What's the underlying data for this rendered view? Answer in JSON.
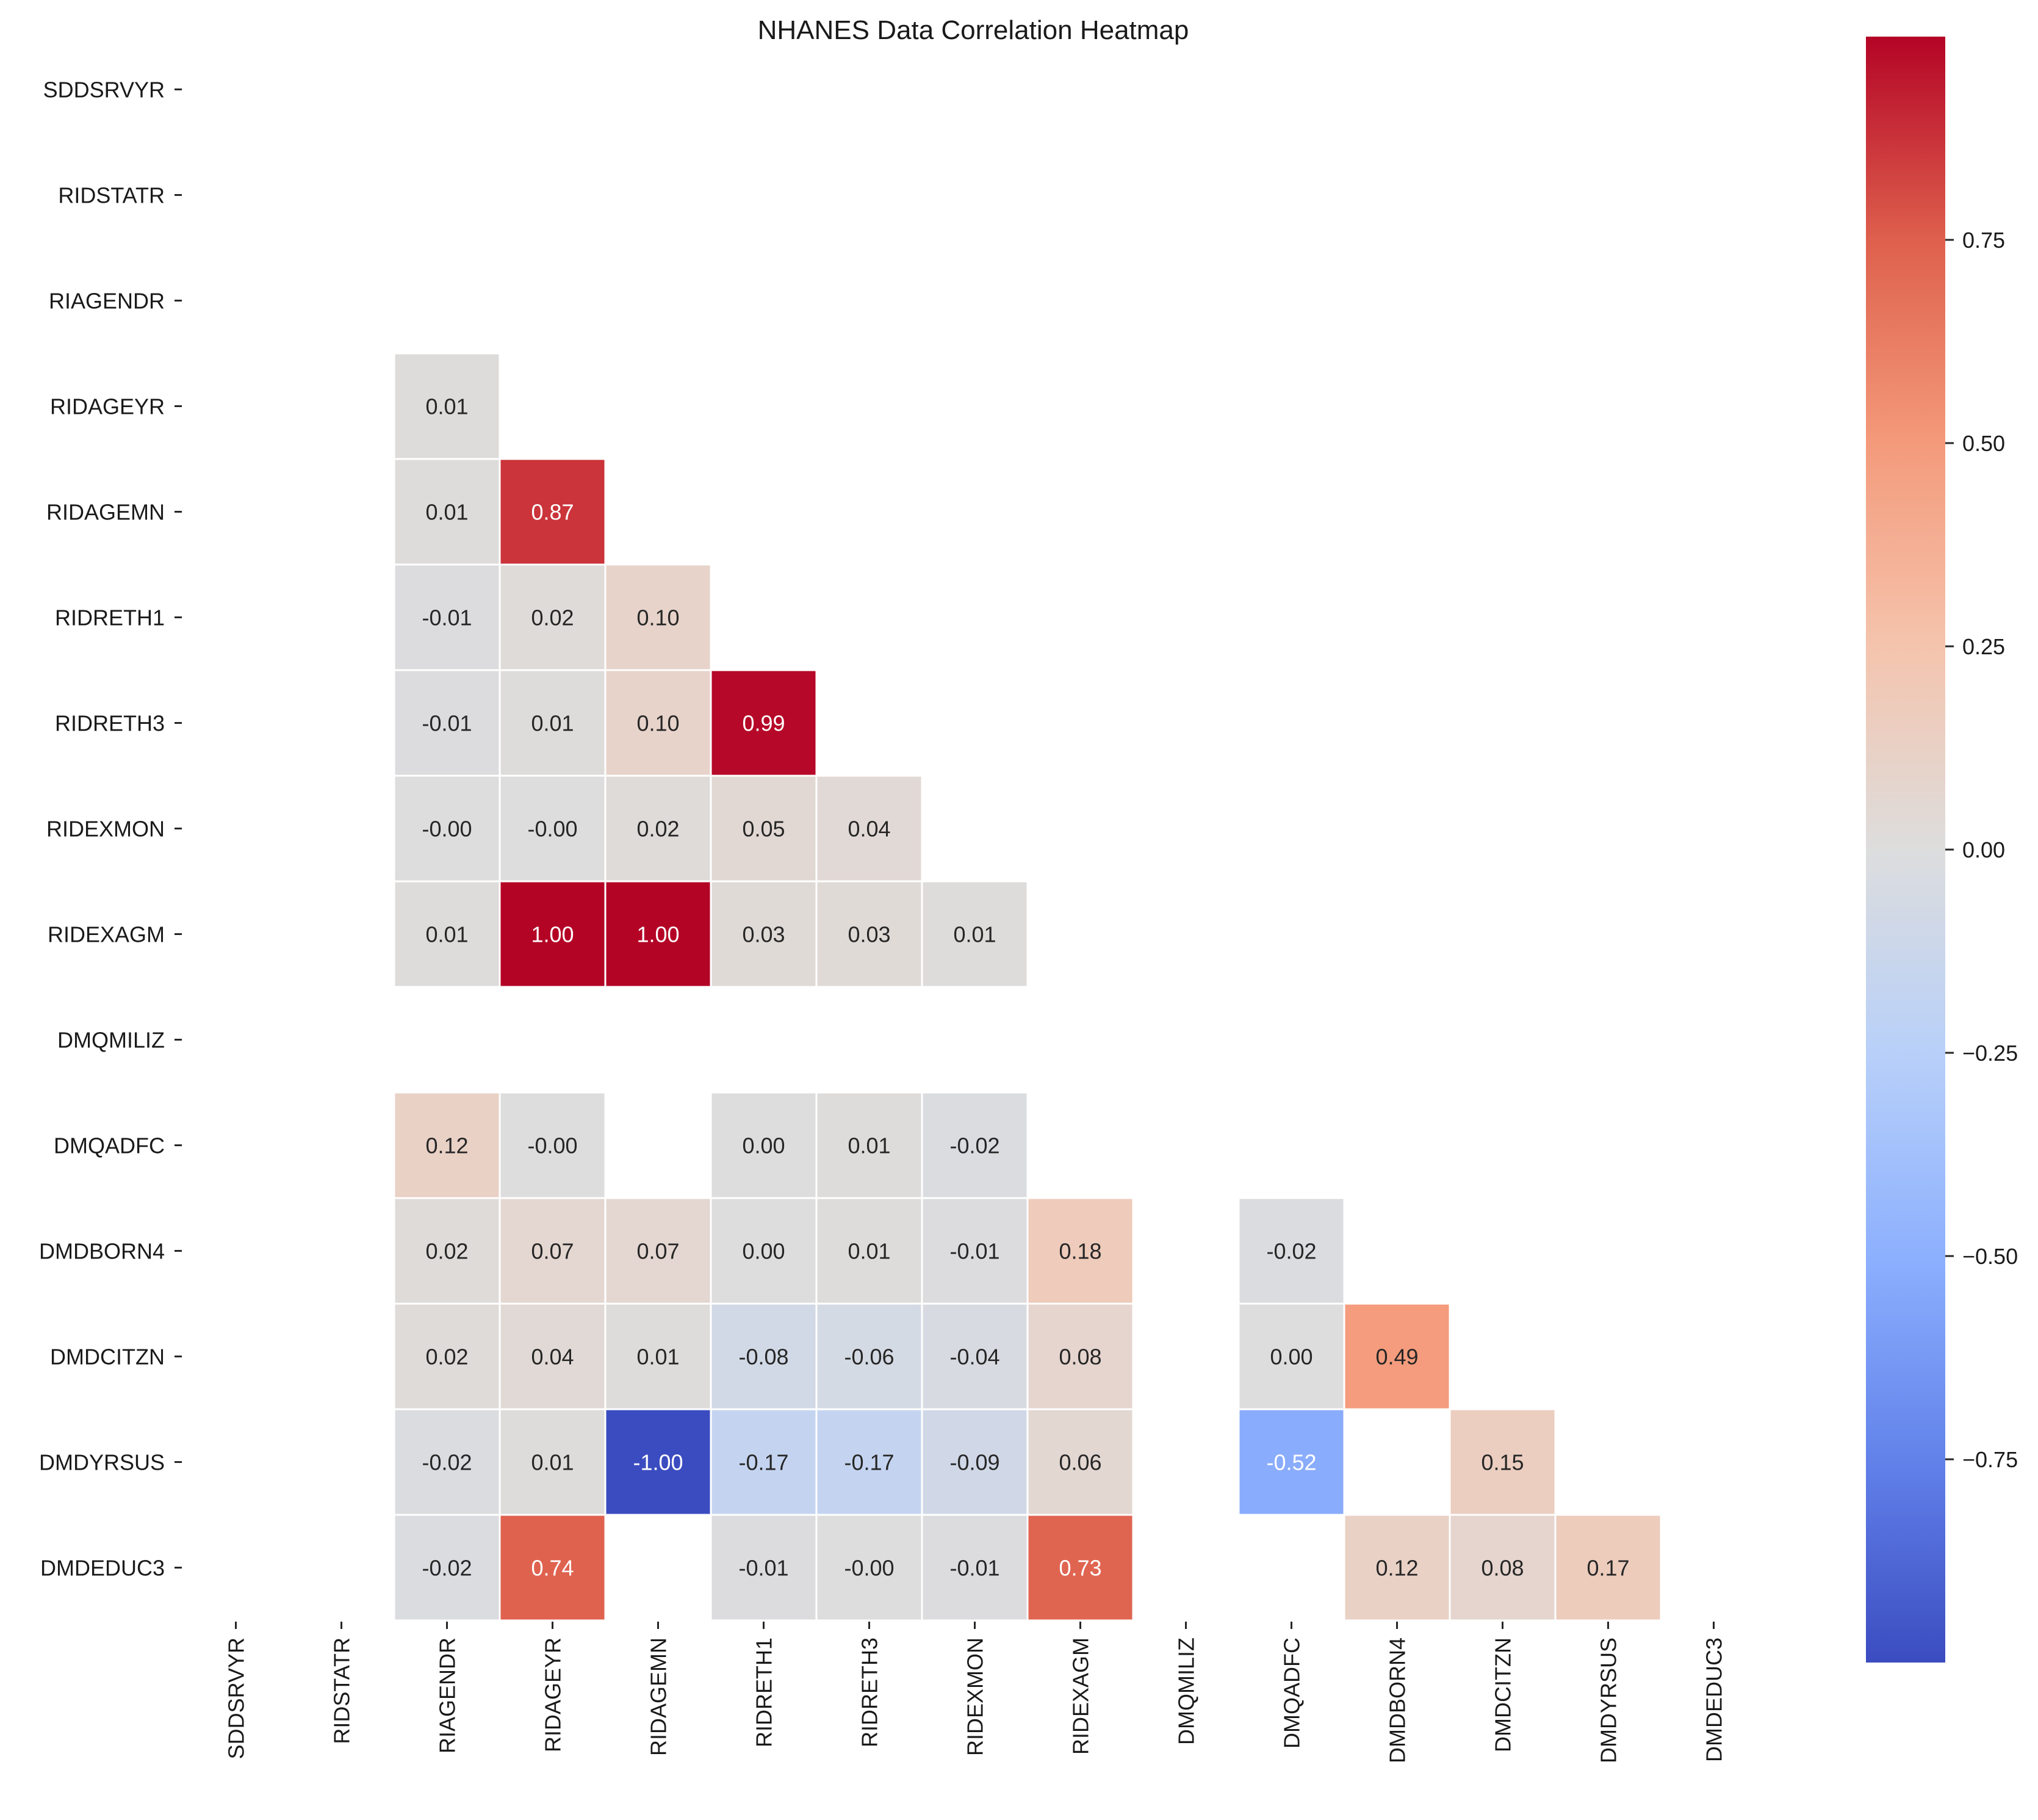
{
  "chart_data": {
    "type": "heatmap",
    "title": "NHANES Data Correlation Heatmap",
    "xlabel": "",
    "ylabel": "",
    "labels": [
      "SDDSRVYR",
      "RIDSTATR",
      "RIAGENDR",
      "RIDAGEYR",
      "RIDAGEMN",
      "RIDRETH1",
      "RIDRETH3",
      "RIDEXMON",
      "RIDEXAGM",
      "DMQMILIZ",
      "DMQADFC",
      "DMDBORN4",
      "DMDCITZN",
      "DMDYRSUS",
      "DMDEDUC3"
    ],
    "matrix": [
      [
        null,
        null,
        null,
        null,
        null,
        null,
        null,
        null,
        null,
        null,
        null,
        null,
        null,
        null,
        null
      ],
      [
        null,
        null,
        null,
        null,
        null,
        null,
        null,
        null,
        null,
        null,
        null,
        null,
        null,
        null,
        null
      ],
      [
        null,
        null,
        null,
        null,
        null,
        null,
        null,
        null,
        null,
        null,
        null,
        null,
        null,
        null,
        null
      ],
      [
        null,
        null,
        0.01,
        null,
        null,
        null,
        null,
        null,
        null,
        null,
        null,
        null,
        null,
        null,
        null
      ],
      [
        null,
        null,
        0.01,
        0.87,
        null,
        null,
        null,
        null,
        null,
        null,
        null,
        null,
        null,
        null,
        null
      ],
      [
        null,
        null,
        -0.01,
        0.02,
        0.1,
        null,
        null,
        null,
        null,
        null,
        null,
        null,
        null,
        null,
        null
      ],
      [
        null,
        null,
        -0.01,
        0.01,
        0.1,
        0.99,
        null,
        null,
        null,
        null,
        null,
        null,
        null,
        null,
        null
      ],
      [
        null,
        null,
        -0.0,
        -0.0,
        0.02,
        0.05,
        0.04,
        null,
        null,
        null,
        null,
        null,
        null,
        null,
        null
      ],
      [
        null,
        null,
        0.01,
        1.0,
        1.0,
        0.03,
        0.03,
        0.01,
        null,
        null,
        null,
        null,
        null,
        null,
        null
      ],
      [
        null,
        null,
        null,
        null,
        null,
        null,
        null,
        null,
        null,
        null,
        null,
        null,
        null,
        null,
        null
      ],
      [
        null,
        null,
        0.12,
        -0.0,
        null,
        0.0,
        0.01,
        -0.02,
        null,
        null,
        null,
        null,
        null,
        null,
        null
      ],
      [
        null,
        null,
        0.02,
        0.07,
        0.07,
        0.0,
        0.01,
        -0.01,
        0.18,
        null,
        -0.02,
        null,
        null,
        null,
        null
      ],
      [
        null,
        null,
        0.02,
        0.04,
        0.01,
        -0.08,
        -0.06,
        -0.04,
        0.08,
        null,
        0.0,
        0.49,
        null,
        null,
        null
      ],
      [
        null,
        null,
        -0.02,
        0.01,
        -1.0,
        -0.17,
        -0.17,
        -0.09,
        0.06,
        null,
        -0.52,
        null,
        0.15,
        null,
        null
      ],
      [
        null,
        null,
        -0.02,
        0.74,
        null,
        -0.01,
        -0.0,
        -0.01,
        0.73,
        null,
        null,
        0.12,
        0.08,
        0.17,
        null
      ]
    ],
    "matrix_text": [
      [
        null,
        null,
        null,
        null,
        null,
        null,
        null,
        null,
        null,
        null,
        null,
        null,
        null,
        null,
        null
      ],
      [
        null,
        null,
        null,
        null,
        null,
        null,
        null,
        null,
        null,
        null,
        null,
        null,
        null,
        null,
        null
      ],
      [
        null,
        null,
        null,
        null,
        null,
        null,
        null,
        null,
        null,
        null,
        null,
        null,
        null,
        null,
        null
      ],
      [
        null,
        null,
        "0.01",
        null,
        null,
        null,
        null,
        null,
        null,
        null,
        null,
        null,
        null,
        null,
        null
      ],
      [
        null,
        null,
        "0.01",
        "0.87",
        null,
        null,
        null,
        null,
        null,
        null,
        null,
        null,
        null,
        null,
        null
      ],
      [
        null,
        null,
        "-0.01",
        "0.02",
        "0.10",
        null,
        null,
        null,
        null,
        null,
        null,
        null,
        null,
        null,
        null
      ],
      [
        null,
        null,
        "-0.01",
        "0.01",
        "0.10",
        "0.99",
        null,
        null,
        null,
        null,
        null,
        null,
        null,
        null,
        null
      ],
      [
        null,
        null,
        "-0.00",
        "-0.00",
        "0.02",
        "0.05",
        "0.04",
        null,
        null,
        null,
        null,
        null,
        null,
        null,
        null
      ],
      [
        null,
        null,
        "0.01",
        "1.00",
        "1.00",
        "0.03",
        "0.03",
        "0.01",
        null,
        null,
        null,
        null,
        null,
        null,
        null
      ],
      [
        null,
        null,
        null,
        null,
        null,
        null,
        null,
        null,
        null,
        null,
        null,
        null,
        null,
        null,
        null
      ],
      [
        null,
        null,
        "0.12",
        "-0.00",
        null,
        "0.00",
        "0.01",
        "-0.02",
        null,
        null,
        null,
        null,
        null,
        null,
        null
      ],
      [
        null,
        null,
        "0.02",
        "0.07",
        "0.07",
        "0.00",
        "0.01",
        "-0.01",
        "0.18",
        null,
        "-0.02",
        null,
        null,
        null,
        null
      ],
      [
        null,
        null,
        "0.02",
        "0.04",
        "0.01",
        "-0.08",
        "-0.06",
        "-0.04",
        "0.08",
        null,
        "0.00",
        "0.49",
        null,
        null,
        null
      ],
      [
        null,
        null,
        "-0.02",
        "0.01",
        "-1.00",
        "-0.17",
        "-0.17",
        "-0.09",
        "0.06",
        null,
        "-0.52",
        null,
        "0.15",
        null,
        null
      ],
      [
        null,
        null,
        "-0.02",
        "0.74",
        null,
        "-0.01",
        "-0.00",
        "-0.01",
        "0.73",
        null,
        null,
        "0.12",
        "0.08",
        "0.17",
        null
      ]
    ],
    "colormap": "coolwarm",
    "vmin": -1.0,
    "vmax": 1.0,
    "colorbar": {
      "ticks": [
        0.75,
        0.5,
        0.25,
        0.0,
        -0.25,
        -0.5,
        -0.75
      ],
      "tick_labels": [
        "0.75",
        "0.50",
        "0.25",
        "0.00",
        "−0.25",
        "−0.50",
        "−0.75"
      ]
    },
    "legend_position": "right",
    "grid": false
  }
}
